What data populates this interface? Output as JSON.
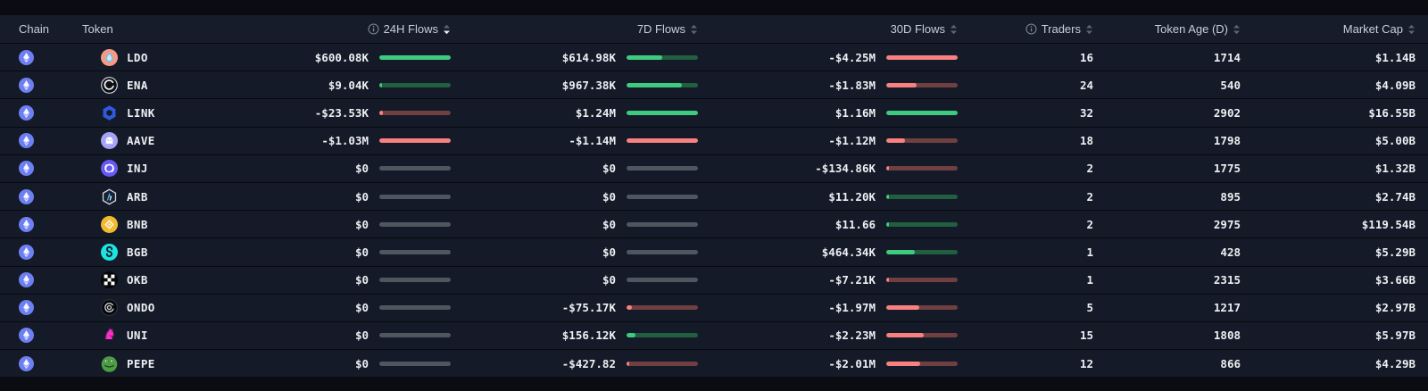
{
  "header": {
    "chain": "Chain",
    "token": "Token",
    "flows_24h": "24H Flows",
    "flows_7d": "7D Flows",
    "flows_30d": "30D Flows",
    "traders": "Traders",
    "token_age": "Token Age (D)",
    "market_cap": "Market Cap",
    "sorted_by": "24H Flows",
    "sort_direction": "descending"
  },
  "colors": {
    "positive_fill": "#3ecb7f",
    "positive_track": "#215f40",
    "negative_fill": "#f88080",
    "negative_track": "#6f3f41",
    "neutral_track": "#4e565f",
    "row_background": "#141a27",
    "page_background": "#0a0c11"
  },
  "rows": [
    {
      "chain": "Ethereum",
      "token": "LDO",
      "icon": "ldo",
      "flows_24h": {
        "value": "$600.08K",
        "dir": "pos",
        "fill": 100
      },
      "flows_7d": {
        "value": "$614.98K",
        "dir": "pos",
        "fill": 50
      },
      "flows_30d": {
        "value": "-$4.25M",
        "dir": "neg",
        "fill": 100
      },
      "traders": "16",
      "token_age": "1714",
      "market_cap": "$1.14B"
    },
    {
      "chain": "Ethereum",
      "token": "ENA",
      "icon": "ena",
      "flows_24h": {
        "value": "$9.04K",
        "dir": "pos",
        "fill": 4
      },
      "flows_7d": {
        "value": "$967.38K",
        "dir": "pos",
        "fill": 78
      },
      "flows_30d": {
        "value": "-$1.83M",
        "dir": "neg",
        "fill": 43
      },
      "traders": "24",
      "token_age": "540",
      "market_cap": "$4.09B"
    },
    {
      "chain": "Ethereum",
      "token": "LINK",
      "icon": "link",
      "flows_24h": {
        "value": "-$23.53K",
        "dir": "neg",
        "fill": 5
      },
      "flows_7d": {
        "value": "$1.24M",
        "dir": "pos",
        "fill": 100
      },
      "flows_30d": {
        "value": "$1.16M",
        "dir": "pos",
        "fill": 100
      },
      "traders": "32",
      "token_age": "2902",
      "market_cap": "$16.55B"
    },
    {
      "chain": "Ethereum",
      "token": "AAVE",
      "icon": "aave",
      "flows_24h": {
        "value": "-$1.03M",
        "dir": "neg",
        "fill": 100
      },
      "flows_7d": {
        "value": "-$1.14M",
        "dir": "neg",
        "fill": 100
      },
      "flows_30d": {
        "value": "-$1.12M",
        "dir": "neg",
        "fill": 26
      },
      "traders": "18",
      "token_age": "1798",
      "market_cap": "$5.00B"
    },
    {
      "chain": "Ethereum",
      "token": "INJ",
      "icon": "inj",
      "flows_24h": {
        "value": "$0",
        "dir": "zero",
        "fill": 0
      },
      "flows_7d": {
        "value": "$0",
        "dir": "zero",
        "fill": 0
      },
      "flows_30d": {
        "value": "-$134.86K",
        "dir": "neg",
        "fill": 4
      },
      "traders": "2",
      "token_age": "1775",
      "market_cap": "$1.32B"
    },
    {
      "chain": "Ethereum",
      "token": "ARB",
      "icon": "arb",
      "flows_24h": {
        "value": "$0",
        "dir": "zero",
        "fill": 0
      },
      "flows_7d": {
        "value": "$0",
        "dir": "zero",
        "fill": 0
      },
      "flows_30d": {
        "value": "$11.20K",
        "dir": "pos",
        "fill": 2
      },
      "traders": "2",
      "token_age": "895",
      "market_cap": "$2.74B"
    },
    {
      "chain": "Ethereum",
      "token": "BNB",
      "icon": "bnb",
      "flows_24h": {
        "value": "$0",
        "dir": "zero",
        "fill": 0
      },
      "flows_7d": {
        "value": "$0",
        "dir": "zero",
        "fill": 0
      },
      "flows_30d": {
        "value": "$11.66",
        "dir": "pos",
        "fill": 1
      },
      "traders": "2",
      "token_age": "2975",
      "market_cap": "$119.54B"
    },
    {
      "chain": "Ethereum",
      "token": "BGB",
      "icon": "bgb",
      "flows_24h": {
        "value": "$0",
        "dir": "zero",
        "fill": 0
      },
      "flows_7d": {
        "value": "$0",
        "dir": "zero",
        "fill": 0
      },
      "flows_30d": {
        "value": "$464.34K",
        "dir": "pos",
        "fill": 40
      },
      "traders": "1",
      "token_age": "428",
      "market_cap": "$5.29B"
    },
    {
      "chain": "Ethereum",
      "token": "OKB",
      "icon": "okb",
      "flows_24h": {
        "value": "$0",
        "dir": "zero",
        "fill": 0
      },
      "flows_7d": {
        "value": "$0",
        "dir": "zero",
        "fill": 0
      },
      "flows_30d": {
        "value": "-$7.21K",
        "dir": "neg",
        "fill": 1
      },
      "traders": "1",
      "token_age": "2315",
      "market_cap": "$3.66B"
    },
    {
      "chain": "Ethereum",
      "token": "ONDO",
      "icon": "ondo",
      "flows_24h": {
        "value": "$0",
        "dir": "zero",
        "fill": 0
      },
      "flows_7d": {
        "value": "-$75.17K",
        "dir": "neg",
        "fill": 7
      },
      "flows_30d": {
        "value": "-$1.97M",
        "dir": "neg",
        "fill": 46
      },
      "traders": "5",
      "token_age": "1217",
      "market_cap": "$2.97B"
    },
    {
      "chain": "Ethereum",
      "token": "UNI",
      "icon": "uni",
      "flows_24h": {
        "value": "$0",
        "dir": "zero",
        "fill": 0
      },
      "flows_7d": {
        "value": "$156.12K",
        "dir": "pos",
        "fill": 13
      },
      "flows_30d": {
        "value": "-$2.23M",
        "dir": "neg",
        "fill": 52
      },
      "traders": "15",
      "token_age": "1808",
      "market_cap": "$5.97B"
    },
    {
      "chain": "Ethereum",
      "token": "PEPE",
      "icon": "pepe",
      "flows_24h": {
        "value": "$0",
        "dir": "zero",
        "fill": 0
      },
      "flows_7d": {
        "value": "-$427.82",
        "dir": "neg",
        "fill": 2
      },
      "flows_30d": {
        "value": "-$2.01M",
        "dir": "neg",
        "fill": 47
      },
      "traders": "12",
      "token_age": "866",
      "market_cap": "$4.29B"
    }
  ]
}
